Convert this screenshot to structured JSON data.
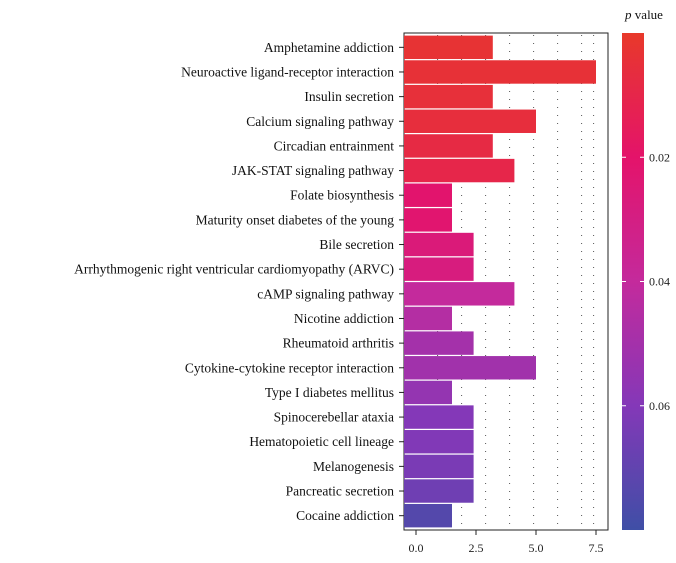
{
  "chart_data": {
    "type": "bar",
    "orientation": "horizontal",
    "categories": [
      "Amphetamine addiction",
      "Neuroactive ligand-receptor interaction",
      "Insulin secretion",
      "Calcium signaling pathway",
      "Circadian entrainment",
      "JAK-STAT signaling pathway",
      "Folate biosynthesis",
      "Maturity onset diabetes of the young",
      "Bile secretion",
      "Arrhythmogenic right ventricular cardiomyopathy (ARVC)",
      "cAMP signaling pathway",
      "Nicotine addiction",
      "Rheumatoid arthritis",
      "Cytokine-cytokine receptor interaction",
      "Type I diabetes mellitus",
      "Spinocerebellar ataxia",
      "Hematopoietic cell lineage",
      "Melanogenesis",
      "Pancreatic secretion",
      "Cocaine addiction"
    ],
    "values": [
      3.2,
      7.5,
      3.2,
      5.0,
      3.2,
      4.1,
      1.5,
      1.5,
      2.4,
      2.4,
      4.1,
      1.5,
      2.4,
      5.0,
      1.5,
      2.4,
      2.4,
      2.4,
      2.4,
      1.5
    ],
    "pvalues": [
      0.003,
      0.004,
      0.005,
      0.006,
      0.008,
      0.01,
      0.021,
      0.022,
      0.026,
      0.028,
      0.04,
      0.045,
      0.05,
      0.051,
      0.055,
      0.06,
      0.061,
      0.063,
      0.066,
      0.074
    ],
    "xlim": [
      -0.5,
      8.0
    ],
    "xticks": [
      0.0,
      2.5,
      5.0,
      7.5
    ],
    "xtick_labels": [
      "0.0",
      "2.5",
      "5.0",
      "7.5"
    ],
    "xlabel": "",
    "ylabel": "",
    "title": "",
    "grid": "dotted",
    "colorbar": {
      "title_symbol": "p",
      "title_text": " value",
      "range": [
        0.0,
        0.08
      ],
      "ticks": [
        0.02,
        0.04,
        0.06
      ],
      "tick_labels": [
        "0.02",
        "0.04",
        "0.06"
      ],
      "colors": [
        "#E8392A",
        "#E4136A",
        "#C42A9C",
        "#8438B8",
        "#3F4FA6"
      ],
      "placement": "right"
    }
  }
}
